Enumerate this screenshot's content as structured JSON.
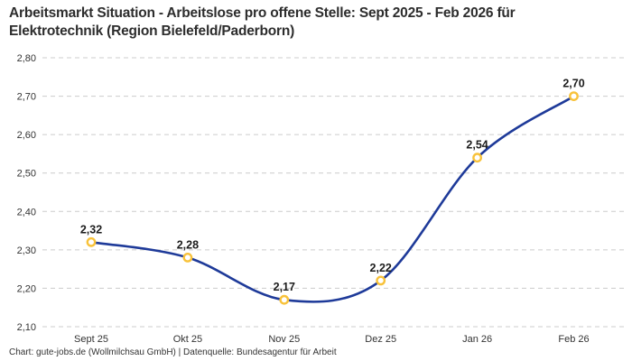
{
  "header": {
    "title_lines": [
      "Arbeitsmarkt Situation - Arbeitslose pro offene Stelle: Sept 2025 - Feb 2026 für",
      "Elektrotechnik (Region Bielefeld/Paderborn)"
    ]
  },
  "chart_data": {
    "type": "line",
    "title": "Arbeitsmarkt Situation - Arbeitslose pro offene Stelle: Sept 2025 - Feb 2026 für Elektrotechnik (Region Bielefeld/Paderborn)",
    "categories": [
      "Sept 25",
      "Okt 25",
      "Nov 25",
      "Dez 25",
      "Jan 26",
      "Feb 26"
    ],
    "values": [
      2.32,
      2.28,
      2.17,
      2.22,
      2.54,
      2.7
    ],
    "point_labels": [
      "2,32",
      "2,28",
      "2,17",
      "2,22",
      "2,54",
      "2,70"
    ],
    "xlabel": "",
    "ylabel": "",
    "ylim": [
      2.1,
      2.8
    ],
    "ytick_values": [
      2.8,
      2.7,
      2.6,
      2.5,
      2.4,
      2.3,
      2.2,
      2.1
    ],
    "ytick_labels": [
      "2,80",
      "2,70",
      "2,60",
      "2,50",
      "2,40",
      "2,30",
      "2,20",
      "2,10"
    ],
    "grid": "horizontal-dashed",
    "legend_position": "none",
    "colors": {
      "line": "#1e3a99",
      "marker_ring": "#f8c23a",
      "marker_fill": "#ffffff",
      "grid": "#cccccc",
      "tick_text": "#333333",
      "label_text": "#1c1c1c"
    }
  },
  "footer": {
    "text": "Chart: gute-jobs.de (Wollmilchsau GmbH) | Datenquelle: Bundesagentur für Arbeit"
  }
}
